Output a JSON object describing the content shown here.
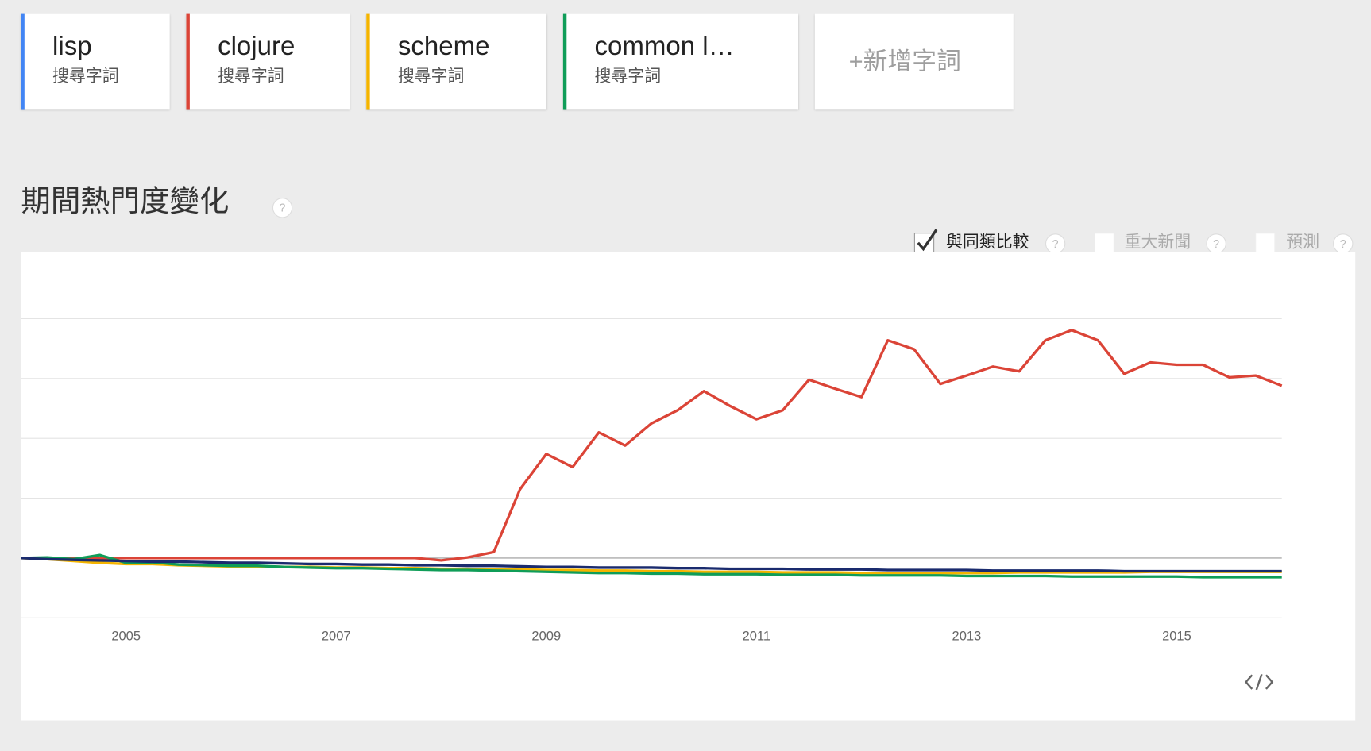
{
  "term_label": "搜尋字詞",
  "add_term": "+新增字詞",
  "section_title": "期間熱門度變化",
  "help_icon": "?",
  "options": [
    {
      "label": "與同類比較",
      "checked": true
    },
    {
      "label": "重大新聞",
      "checked": false
    },
    {
      "label": "預測",
      "checked": false
    }
  ],
  "chart_data": {
    "type": "line",
    "x": [
      2004,
      2004.25,
      2004.5,
      2004.75,
      2005,
      2005.25,
      2005.5,
      2005.75,
      2006,
      2006.25,
      2006.5,
      2006.75,
      2007,
      2007.25,
      2007.5,
      2007.75,
      2008,
      2008.25,
      2008.5,
      2008.75,
      2009,
      2009.25,
      2009.5,
      2009.75,
      2010,
      2010.25,
      2010.5,
      2010.75,
      2011,
      2011.25,
      2011.5,
      2011.75,
      2012,
      2012.25,
      2012.5,
      2012.75,
      2013,
      2013.25,
      2013.5,
      2013.75,
      2014,
      2014.25,
      2014.5,
      2014.75,
      2015,
      2015.25,
      2015.5,
      2015.75,
      2016
    ],
    "xlim": [
      2004,
      2016
    ],
    "xticks": [
      2005,
      2007,
      2009,
      2011,
      2013,
      2015
    ],
    "ylim": [
      -1,
      5
    ],
    "yticks": [
      -1,
      0,
      1,
      2,
      3,
      4
    ],
    "grid": true,
    "series": [
      {
        "name": "lisp",
        "key_color": "#4285f4",
        "color": "#1a2b6e",
        "values": [
          0,
          -0.02,
          -0.03,
          -0.04,
          -0.05,
          -0.06,
          -0.06,
          -0.07,
          -0.08,
          -0.08,
          -0.09,
          -0.1,
          -0.1,
          -0.11,
          -0.11,
          -0.12,
          -0.12,
          -0.13,
          -0.13,
          -0.14,
          -0.15,
          -0.15,
          -0.16,
          -0.16,
          -0.16,
          -0.17,
          -0.17,
          -0.18,
          -0.18,
          -0.18,
          -0.19,
          -0.19,
          -0.19,
          -0.2,
          -0.2,
          -0.2,
          -0.2,
          -0.21,
          -0.21,
          -0.21,
          -0.21,
          -0.21,
          -0.22,
          -0.22,
          -0.22,
          -0.22,
          -0.22,
          -0.22,
          -0.22
        ]
      },
      {
        "name": "clojure",
        "key_color": "#db4437",
        "color": "#db4437",
        "values": [
          0,
          0,
          0,
          0,
          0,
          0,
          0,
          0,
          0,
          0,
          0,
          0,
          0,
          0,
          0,
          0,
          -0.04,
          0.01,
          0.1,
          1.15,
          1.74,
          1.52,
          2.1,
          1.88,
          2.25,
          2.47,
          2.79,
          2.54,
          2.32,
          2.47,
          2.98,
          2.83,
          2.69,
          3.64,
          3.49,
          2.91,
          3.05,
          3.2,
          3.12,
          3.64,
          3.81,
          3.64,
          3.08,
          3.27,
          3.23,
          3.23,
          3.02,
          3.05,
          2.88
        ]
      },
      {
        "name": "scheme",
        "key_color": "#f4b400",
        "color": "#f4b400",
        "values": [
          0,
          -0.02,
          -0.05,
          -0.08,
          -0.1,
          -0.1,
          -0.12,
          -0.13,
          -0.14,
          -0.14,
          -0.15,
          -0.15,
          -0.16,
          -0.16,
          -0.17,
          -0.17,
          -0.18,
          -0.18,
          -0.19,
          -0.19,
          -0.2,
          -0.2,
          -0.21,
          -0.21,
          -0.22,
          -0.22,
          -0.23,
          -0.23,
          -0.23,
          -0.24,
          -0.24,
          -0.24,
          -0.25,
          -0.25,
          -0.25,
          -0.25,
          -0.25,
          -0.25,
          -0.24,
          -0.24,
          -0.24,
          -0.24,
          -0.24,
          -0.23,
          -0.23,
          -0.23,
          -0.23,
          -0.23,
          -0.23
        ]
      },
      {
        "name": "common l…",
        "key_color": "#0f9d58",
        "color": "#0f9d58",
        "values": [
          0,
          0.01,
          -0.02,
          0.05,
          -0.08,
          -0.07,
          -0.11,
          -0.12,
          -0.13,
          -0.13,
          -0.15,
          -0.16,
          -0.17,
          -0.17,
          -0.18,
          -0.19,
          -0.2,
          -0.2,
          -0.21,
          -0.22,
          -0.23,
          -0.24,
          -0.25,
          -0.25,
          -0.26,
          -0.26,
          -0.27,
          -0.27,
          -0.27,
          -0.28,
          -0.28,
          -0.28,
          -0.29,
          -0.29,
          -0.29,
          -0.29,
          -0.3,
          -0.3,
          -0.3,
          -0.3,
          -0.31,
          -0.31,
          -0.31,
          -0.31,
          -0.31,
          -0.32,
          -0.32,
          -0.32,
          -0.32
        ]
      }
    ]
  }
}
